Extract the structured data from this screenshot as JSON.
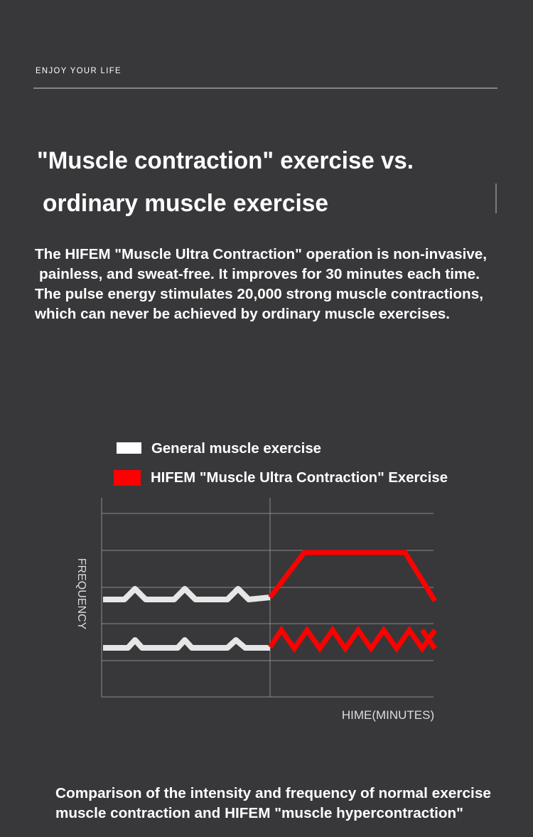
{
  "header": {
    "tagline": "ENJOY YOUR LIFE"
  },
  "title": {
    "line1": "\"Muscle contraction\" exercise vs.",
    "line2": "ordinary muscle exercise"
  },
  "description": [
    "The HIFEM \"Muscle Ultra Contraction\" operation is non-invasive,",
    "painless, and sweat-free. It improves for 30 minutes each time.",
    "The pulse energy stimulates 20,000 strong muscle contractions,",
    "which can never be achieved by ordinary muscle exercises."
  ],
  "legend": [
    "General muscle exercise",
    "HIFEM \"Muscle Ultra Contraction\" Exercise"
  ],
  "diagram": {
    "y_label": "FREQUENCY",
    "x_label": "HIME(MINUTES)"
  },
  "caption": [
    "Comparison of the intensity and frequency of normal exercise",
    "muscle contraction and HIFEM \"muscle hypercontraction\""
  ]
}
